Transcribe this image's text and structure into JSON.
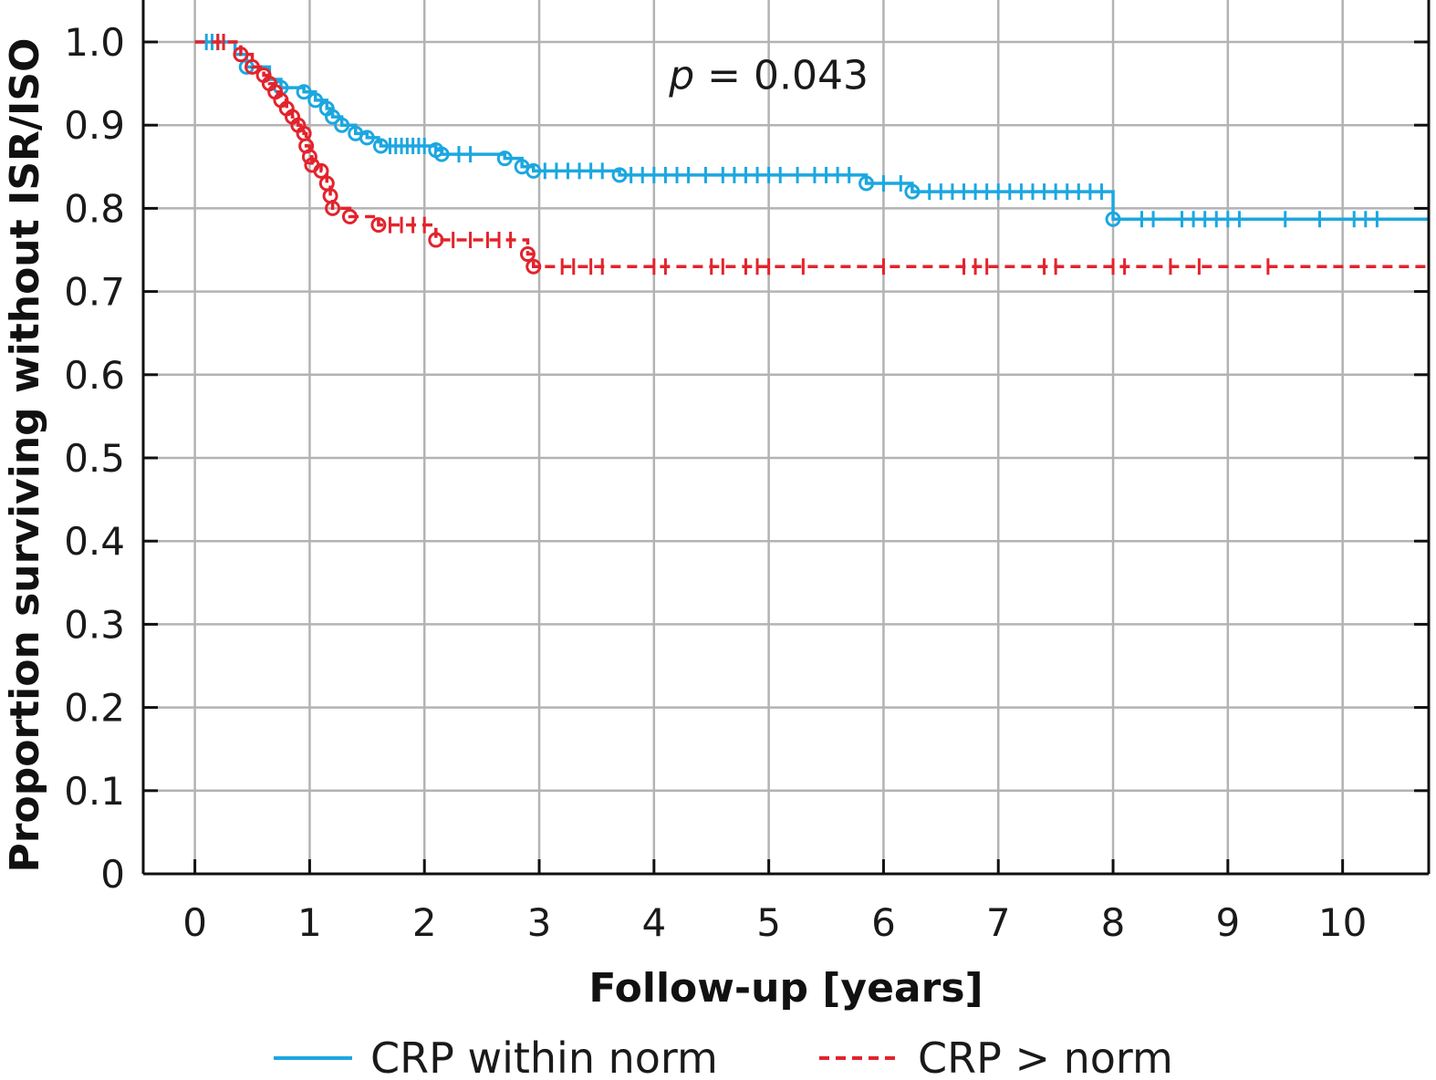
{
  "chart_data": {
    "type": "line",
    "subtype": "kaplan-meier",
    "xlabel": "Follow-up [years]",
    "ylabel": "Proportion surviving without ISR/ISO",
    "xlim": [
      -0.45,
      10.75
    ],
    "ylim": [
      0,
      1.0
    ],
    "x_ticks": [
      0,
      1,
      2,
      3,
      4,
      5,
      6,
      7,
      8,
      9,
      10
    ],
    "x_tick_labels": [
      "0",
      "1",
      "2",
      "3",
      "4",
      "5",
      "6",
      "7",
      "8",
      "9",
      "10"
    ],
    "y_ticks": [
      0,
      0.1,
      0.2,
      0.3,
      0.4,
      0.5,
      0.6,
      0.7,
      0.8,
      0.9,
      1.0
    ],
    "y_tick_labels": [
      "0",
      "0.1",
      "0.2",
      "0.3",
      "0.4",
      "0.5",
      "0.6",
      "0.7",
      "0.8",
      "0.9",
      "1.0"
    ],
    "grid": true,
    "annotation": {
      "italic": "p",
      "rest": " = 0.043",
      "x": 5.0,
      "y": 0.96
    },
    "legend_position": "bottom",
    "series": [
      {
        "name": "CRP within norm",
        "color": "#1ca7e0",
        "dash": "solid",
        "steps": [
          [
            0,
            1.0
          ],
          [
            0.35,
            0.985
          ],
          [
            0.45,
            0.97
          ],
          [
            0.65,
            0.955
          ],
          [
            0.75,
            0.945
          ],
          [
            0.95,
            0.94
          ],
          [
            1.05,
            0.93
          ],
          [
            1.15,
            0.92
          ],
          [
            1.2,
            0.91
          ],
          [
            1.28,
            0.9
          ],
          [
            1.4,
            0.89
          ],
          [
            1.5,
            0.885
          ],
          [
            1.6,
            0.88
          ],
          [
            1.62,
            0.875
          ],
          [
            2.1,
            0.87
          ],
          [
            2.15,
            0.865
          ],
          [
            2.7,
            0.86
          ],
          [
            2.85,
            0.85
          ],
          [
            2.95,
            0.845
          ],
          [
            3.7,
            0.84
          ],
          [
            5.85,
            0.83
          ],
          [
            6.25,
            0.82
          ],
          [
            8.0,
            0.787
          ]
        ],
        "x_end": 10.75,
        "events": [
          [
            0.45,
            0.97
          ],
          [
            0.75,
            0.945
          ],
          [
            0.95,
            0.94
          ],
          [
            1.05,
            0.93
          ],
          [
            1.15,
            0.92
          ],
          [
            1.2,
            0.91
          ],
          [
            1.28,
            0.9
          ],
          [
            1.4,
            0.89
          ],
          [
            1.5,
            0.885
          ],
          [
            1.62,
            0.875
          ],
          [
            2.1,
            0.87
          ],
          [
            2.15,
            0.865
          ],
          [
            2.7,
            0.86
          ],
          [
            2.85,
            0.85
          ],
          [
            2.95,
            0.845
          ],
          [
            3.7,
            0.84
          ],
          [
            5.85,
            0.83
          ],
          [
            6.25,
            0.82
          ],
          [
            8.0,
            0.787
          ]
        ],
        "censored": [
          [
            0.1,
            1.0
          ],
          [
            0.15,
            1.0
          ],
          [
            0.2,
            1.0
          ],
          [
            0.25,
            1.0
          ],
          [
            1.7,
            0.875
          ],
          [
            1.75,
            0.875
          ],
          [
            1.8,
            0.875
          ],
          [
            1.85,
            0.875
          ],
          [
            1.9,
            0.875
          ],
          [
            1.95,
            0.875
          ],
          [
            2.0,
            0.875
          ],
          [
            2.3,
            0.865
          ],
          [
            2.4,
            0.865
          ],
          [
            3.05,
            0.845
          ],
          [
            3.15,
            0.845
          ],
          [
            3.25,
            0.845
          ],
          [
            3.35,
            0.845
          ],
          [
            3.45,
            0.845
          ],
          [
            3.55,
            0.845
          ],
          [
            3.8,
            0.84
          ],
          [
            3.9,
            0.84
          ],
          [
            4.0,
            0.84
          ],
          [
            4.1,
            0.84
          ],
          [
            4.2,
            0.84
          ],
          [
            4.3,
            0.84
          ],
          [
            4.45,
            0.84
          ],
          [
            4.6,
            0.84
          ],
          [
            4.7,
            0.84
          ],
          [
            4.8,
            0.84
          ],
          [
            4.9,
            0.84
          ],
          [
            5.0,
            0.84
          ],
          [
            5.1,
            0.84
          ],
          [
            5.25,
            0.84
          ],
          [
            5.4,
            0.84
          ],
          [
            5.5,
            0.84
          ],
          [
            5.6,
            0.84
          ],
          [
            5.7,
            0.84
          ],
          [
            6.0,
            0.83
          ],
          [
            6.15,
            0.83
          ],
          [
            6.4,
            0.82
          ],
          [
            6.5,
            0.82
          ],
          [
            6.6,
            0.82
          ],
          [
            6.7,
            0.82
          ],
          [
            6.8,
            0.82
          ],
          [
            6.9,
            0.82
          ],
          [
            7.0,
            0.82
          ],
          [
            7.1,
            0.82
          ],
          [
            7.2,
            0.82
          ],
          [
            7.3,
            0.82
          ],
          [
            7.4,
            0.82
          ],
          [
            7.5,
            0.82
          ],
          [
            7.6,
            0.82
          ],
          [
            7.7,
            0.82
          ],
          [
            7.8,
            0.82
          ],
          [
            7.9,
            0.82
          ],
          [
            8.25,
            0.787
          ],
          [
            8.35,
            0.787
          ],
          [
            8.6,
            0.787
          ],
          [
            8.7,
            0.787
          ],
          [
            8.8,
            0.787
          ],
          [
            8.9,
            0.787
          ],
          [
            9.0,
            0.787
          ],
          [
            9.1,
            0.787
          ],
          [
            9.5,
            0.787
          ],
          [
            9.8,
            0.787
          ],
          [
            10.1,
            0.787
          ],
          [
            10.2,
            0.787
          ],
          [
            10.3,
            0.787
          ]
        ]
      },
      {
        "name": "CRP > norm",
        "color": "#e3232c",
        "dash": "dashed",
        "steps": [
          [
            0,
            1.0
          ],
          [
            0.4,
            0.985
          ],
          [
            0.5,
            0.97
          ],
          [
            0.6,
            0.96
          ],
          [
            0.65,
            0.95
          ],
          [
            0.7,
            0.94
          ],
          [
            0.75,
            0.93
          ],
          [
            0.8,
            0.92
          ],
          [
            0.85,
            0.91
          ],
          [
            0.9,
            0.9
          ],
          [
            0.95,
            0.89
          ],
          [
            0.97,
            0.875
          ],
          [
            1.0,
            0.862
          ],
          [
            1.02,
            0.852
          ],
          [
            1.1,
            0.845
          ],
          [
            1.15,
            0.83
          ],
          [
            1.18,
            0.815
          ],
          [
            1.2,
            0.8
          ],
          [
            1.35,
            0.79
          ],
          [
            1.6,
            0.78
          ],
          [
            2.1,
            0.762
          ],
          [
            2.9,
            0.745
          ],
          [
            2.95,
            0.73
          ]
        ],
        "x_end": 10.75,
        "events": [
          [
            0.4,
            0.985
          ],
          [
            0.5,
            0.97
          ],
          [
            0.6,
            0.96
          ],
          [
            0.65,
            0.95
          ],
          [
            0.7,
            0.94
          ],
          [
            0.75,
            0.93
          ],
          [
            0.8,
            0.92
          ],
          [
            0.85,
            0.91
          ],
          [
            0.9,
            0.9
          ],
          [
            0.95,
            0.89
          ],
          [
            0.97,
            0.875
          ],
          [
            1.0,
            0.862
          ],
          [
            1.02,
            0.852
          ],
          [
            1.1,
            0.845
          ],
          [
            1.15,
            0.83
          ],
          [
            1.18,
            0.815
          ],
          [
            1.2,
            0.8
          ],
          [
            1.35,
            0.79
          ],
          [
            1.6,
            0.78
          ],
          [
            2.1,
            0.762
          ],
          [
            2.9,
            0.745
          ],
          [
            2.95,
            0.73
          ]
        ],
        "censored": [
          [
            0.2,
            1.0
          ],
          [
            0.25,
            1.0
          ],
          [
            1.7,
            0.78
          ],
          [
            1.8,
            0.78
          ],
          [
            1.9,
            0.78
          ],
          [
            2.0,
            0.78
          ],
          [
            2.25,
            0.762
          ],
          [
            2.4,
            0.762
          ],
          [
            2.55,
            0.762
          ],
          [
            2.65,
            0.762
          ],
          [
            2.75,
            0.762
          ],
          [
            3.2,
            0.73
          ],
          [
            3.3,
            0.73
          ],
          [
            3.45,
            0.73
          ],
          [
            3.55,
            0.73
          ],
          [
            4.0,
            0.73
          ],
          [
            4.1,
            0.73
          ],
          [
            4.5,
            0.73
          ],
          [
            4.6,
            0.73
          ],
          [
            4.8,
            0.73
          ],
          [
            4.9,
            0.73
          ],
          [
            5.0,
            0.73
          ],
          [
            5.3,
            0.73
          ],
          [
            6.0,
            0.73
          ],
          [
            6.7,
            0.73
          ],
          [
            6.8,
            0.73
          ],
          [
            6.9,
            0.73
          ],
          [
            7.4,
            0.73
          ],
          [
            7.5,
            0.73
          ],
          [
            8.0,
            0.73
          ],
          [
            8.1,
            0.73
          ],
          [
            8.5,
            0.73
          ],
          [
            8.75,
            0.73
          ],
          [
            9.35,
            0.73
          ]
        ]
      }
    ]
  }
}
